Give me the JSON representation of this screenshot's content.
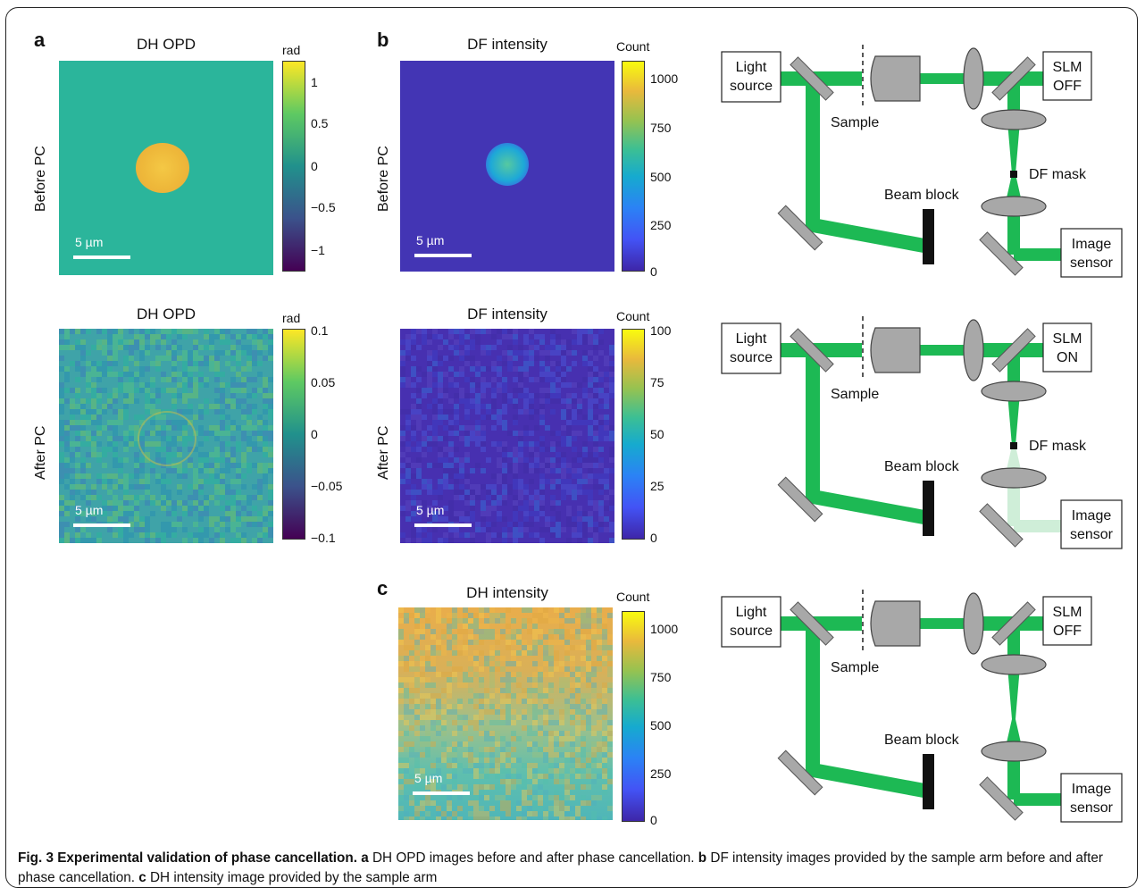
{
  "panels": {
    "a": {
      "label": "a",
      "title_top": "DH OPD",
      "title_bottom": "DH OPD"
    },
    "b": {
      "label": "b",
      "title_top": "DF intensity",
      "title_bottom": "DF intensity"
    },
    "c": {
      "label": "c",
      "title": "DH intensity"
    }
  },
  "row_labels": {
    "before": "Before PC",
    "after": "After PC"
  },
  "scale_bar": "5 µm",
  "colorbars": {
    "a_top": {
      "unit": "rad",
      "ticks": [
        "1",
        "0.5",
        "0",
        "−0.5",
        "−1"
      ]
    },
    "a_bottom": {
      "unit": "rad",
      "ticks": [
        "0.1",
        "0.05",
        "0",
        "−0.05",
        "−0.1"
      ]
    },
    "b_top": {
      "unit": "Count",
      "ticks": [
        "1000",
        "750",
        "500",
        "250",
        "0"
      ]
    },
    "b_bottom": {
      "unit": "Count",
      "ticks": [
        "100",
        "75",
        "50",
        "25",
        "0"
      ]
    },
    "c": {
      "unit": "Count",
      "ticks": [
        "1000",
        "750",
        "500",
        "250",
        "0"
      ]
    }
  },
  "diagrams": [
    {
      "light": [
        "Light",
        "source"
      ],
      "sample": "Sample",
      "slm": [
        "SLM",
        "OFF"
      ],
      "mask": "DF mask",
      "block": "Beam block",
      "sensor": [
        "Image",
        "sensor"
      ]
    },
    {
      "light": [
        "Light",
        "source"
      ],
      "sample": "Sample",
      "slm": [
        "SLM",
        "ON"
      ],
      "mask": "DF mask",
      "block": "Beam block",
      "sensor": [
        "Image",
        "sensor"
      ]
    },
    {
      "light": [
        "Light",
        "source"
      ],
      "sample": "Sample",
      "slm": [
        "SLM",
        "OFF"
      ],
      "mask": "",
      "block": "Beam block",
      "sensor": [
        "Image",
        "sensor"
      ]
    }
  ],
  "caption": {
    "fig": "Fig. 3",
    "title": "Experimental validation of phase cancellation.",
    "a_label": "a",
    "a_text": "DH OPD images before and after phase cancellation.",
    "b_label": "b",
    "b_text": "DF intensity images provided by the sample arm before and after phase cancellation.",
    "c_label": "c",
    "c_text": "DH intensity image provided by the sample arm"
  },
  "colors": {
    "beam": "#1db954",
    "beam_light": "#cfeed8",
    "optic": "#a8a8a8"
  }
}
